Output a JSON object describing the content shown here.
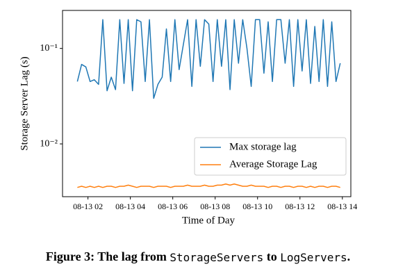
{
  "chart_data": {
    "type": "line",
    "xlabel": "Time of Day",
    "ylabel": "Storage Server Lag (s)",
    "caption": [
      "Figure 3: The lag from ",
      "StorageServers",
      " to ",
      "LogServers",
      "."
    ],
    "log_y": true,
    "legend": "lower right",
    "xlim": [
      0.8,
      14.4
    ],
    "xticks": [
      {
        "value": 2,
        "label": "08-13 02"
      },
      {
        "value": 4,
        "label": "08-13 04"
      },
      {
        "value": 6,
        "label": "08-13 06"
      },
      {
        "value": 8,
        "label": "08-13 08"
      },
      {
        "value": 10,
        "label": "08-13 10"
      },
      {
        "value": 12,
        "label": "08-13 12"
      },
      {
        "value": 14,
        "label": "08-13 14"
      }
    ],
    "ylim": [
      0.0028,
      0.25
    ],
    "yticks": [
      {
        "value": 0.01,
        "label": "10⁻²"
      },
      {
        "value": 0.1,
        "label": "10⁻¹"
      }
    ],
    "x": [
      1.5,
      1.7,
      1.9,
      2.1,
      2.3,
      2.5,
      2.7,
      2.9,
      3.1,
      3.3,
      3.5,
      3.7,
      3.9,
      4.1,
      4.3,
      4.5,
      4.7,
      4.9,
      5.1,
      5.3,
      5.5,
      5.7,
      5.9,
      6.1,
      6.3,
      6.5,
      6.7,
      6.9,
      7.1,
      7.3,
      7.5,
      7.7,
      7.9,
      8.1,
      8.3,
      8.5,
      8.7,
      8.9,
      9.1,
      9.3,
      9.5,
      9.7,
      9.9,
      10.1,
      10.3,
      10.5,
      10.7,
      10.9,
      11.1,
      11.3,
      11.5,
      11.7,
      11.9,
      12.1,
      12.3,
      12.5,
      12.7,
      12.9,
      13.1,
      13.3,
      13.5,
      13.7,
      13.9
    ],
    "series": [
      {
        "name": "Max storage lag",
        "color": "#1f77b4",
        "values": [
          0.045,
          0.068,
          0.064,
          0.045,
          0.047,
          0.042,
          0.2,
          0.036,
          0.05,
          0.037,
          0.2,
          0.043,
          0.2,
          0.036,
          0.2,
          0.19,
          0.045,
          0.2,
          0.03,
          0.042,
          0.05,
          0.16,
          0.045,
          0.2,
          0.06,
          0.11,
          0.2,
          0.04,
          0.2,
          0.065,
          0.2,
          0.18,
          0.045,
          0.2,
          0.065,
          0.2,
          0.037,
          0.2,
          0.07,
          0.2,
          0.1,
          0.04,
          0.2,
          0.2,
          0.055,
          0.19,
          0.045,
          0.2,
          0.2,
          0.07,
          0.2,
          0.04,
          0.2,
          0.058,
          0.2,
          0.043,
          0.17,
          0.045,
          0.2,
          0.04,
          0.19,
          0.045,
          0.07
        ]
      },
      {
        "name": "Average Storage Lag",
        "color": "#ff7f0e",
        "values": [
          0.0035,
          0.0036,
          0.0035,
          0.0036,
          0.0035,
          0.0036,
          0.0035,
          0.0036,
          0.0036,
          0.0035,
          0.0036,
          0.0036,
          0.0037,
          0.0036,
          0.0035,
          0.0036,
          0.0036,
          0.0036,
          0.0035,
          0.0036,
          0.0036,
          0.0036,
          0.0035,
          0.0036,
          0.0036,
          0.0036,
          0.0037,
          0.0036,
          0.0036,
          0.0036,
          0.0037,
          0.0036,
          0.0036,
          0.0037,
          0.0037,
          0.0038,
          0.0037,
          0.0038,
          0.0037,
          0.0036,
          0.0036,
          0.0037,
          0.0036,
          0.0036,
          0.0036,
          0.0035,
          0.0036,
          0.0036,
          0.0035,
          0.0036,
          0.0036,
          0.0035,
          0.0036,
          0.0036,
          0.0035,
          0.0036,
          0.0035,
          0.0036,
          0.0036,
          0.0035,
          0.0036,
          0.0036,
          0.0035
        ]
      }
    ]
  }
}
